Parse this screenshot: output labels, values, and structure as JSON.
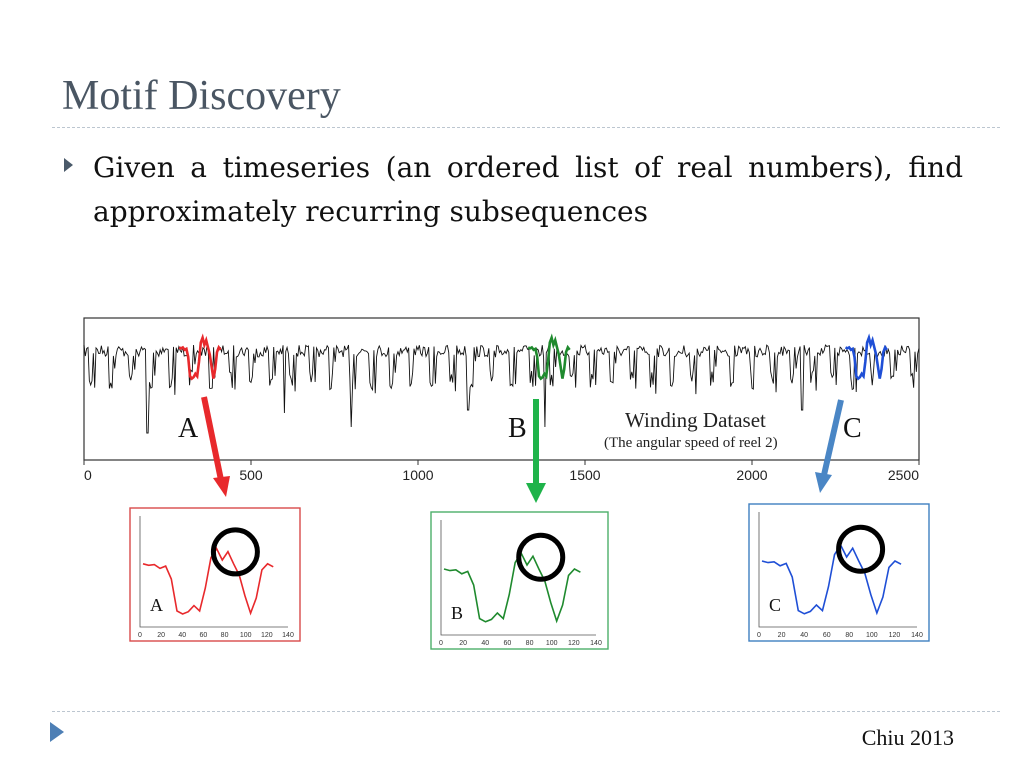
{
  "slide": {
    "title": "Motif Discovery",
    "bullet": "Given a timeseries (an ordered list of real numbers), find approximately recurring subsequences",
    "footer": "Chiu 2013"
  },
  "figure": {
    "dataset_title": "Winding Dataset",
    "dataset_subtitle": "(The angular speed of reel 2)",
    "axis_ticks": [
      "0",
      "500",
      "1000",
      "1500",
      "2000",
      "2500"
    ],
    "motifs": [
      {
        "label": "A",
        "color": "#e8292c",
        "box_color": "#d94a4a",
        "inset_label": "A"
      },
      {
        "label": "B",
        "color": "#1f8a2e",
        "box_color": "#4caf6a",
        "inset_label": "B"
      },
      {
        "label": "C",
        "color": "#1f4fd6",
        "box_color": "#3f7fc0",
        "inset_label": "C"
      }
    ],
    "inset_ticks": [
      "0",
      "20",
      "40",
      "60",
      "80",
      "100",
      "120",
      "140"
    ],
    "arrow_colors": [
      "#e8292c",
      "#1fb34a",
      "#4a86c5"
    ]
  }
}
